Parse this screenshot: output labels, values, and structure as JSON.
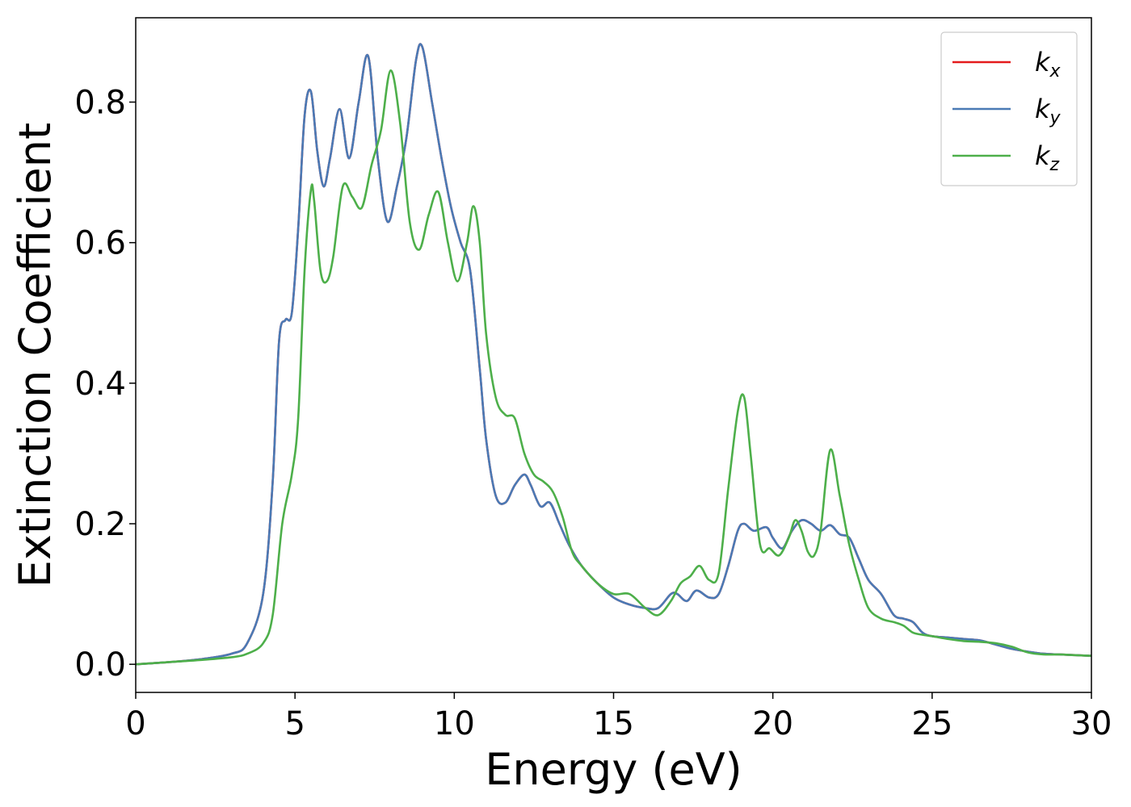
{
  "chart_data": {
    "type": "line",
    "title": "",
    "xlabel": "Energy (eV)",
    "ylabel": "Extinction Coefficient",
    "xlim": [
      0,
      30
    ],
    "ylim": [
      -0.04,
      0.92
    ],
    "xticks": [
      0,
      5,
      10,
      15,
      20,
      25,
      30
    ],
    "yticks": [
      0.0,
      0.2,
      0.4,
      0.6,
      0.8
    ],
    "xtick_labels": [
      "0",
      "5",
      "10",
      "15",
      "20",
      "25",
      "30"
    ],
    "ytick_labels": [
      "0.0",
      "0.2",
      "0.4",
      "0.6",
      "0.8"
    ],
    "grid": false,
    "legend_position": "top-right",
    "series": [
      {
        "name": "k_x",
        "label_base": "k",
        "label_sub": "x",
        "color": "#e41a1c",
        "x": [
          0,
          1,
          2,
          3,
          3.5,
          4,
          4.3,
          4.5,
          4.7,
          4.9,
          5.1,
          5.3,
          5.5,
          5.7,
          5.9,
          6.1,
          6.4,
          6.7,
          7.0,
          7.3,
          7.6,
          7.9,
          8.2,
          8.5,
          8.8,
          9.0,
          9.3,
          9.6,
          9.9,
          10.2,
          10.5,
          10.8,
          11.0,
          11.3,
          11.6,
          11.9,
          12.2,
          12.4,
          12.7,
          13.0,
          13.3,
          13.6,
          14.0,
          14.5,
          15.0,
          15.5,
          16.0,
          16.4,
          16.8,
          17.0,
          17.3,
          17.6,
          18.0,
          18.3,
          18.6,
          18.9,
          19.1,
          19.4,
          19.8,
          20.0,
          20.3,
          20.6,
          20.9,
          21.2,
          21.5,
          21.8,
          22.1,
          22.4,
          22.7,
          23.0,
          23.4,
          23.8,
          24.1,
          24.4,
          24.7,
          25.0,
          25.5,
          26.0,
          26.5,
          27.0,
          27.5,
          28.0,
          28.5,
          29.0,
          29.5,
          30
        ],
        "y": [
          0.0,
          0.003,
          0.007,
          0.015,
          0.03,
          0.1,
          0.26,
          0.46,
          0.49,
          0.5,
          0.62,
          0.78,
          0.815,
          0.73,
          0.68,
          0.72,
          0.79,
          0.72,
          0.8,
          0.865,
          0.72,
          0.63,
          0.68,
          0.75,
          0.86,
          0.878,
          0.8,
          0.72,
          0.65,
          0.6,
          0.56,
          0.42,
          0.32,
          0.24,
          0.23,
          0.255,
          0.27,
          0.255,
          0.225,
          0.23,
          0.2,
          0.17,
          0.14,
          0.115,
          0.095,
          0.085,
          0.08,
          0.08,
          0.1,
          0.1,
          0.09,
          0.105,
          0.095,
          0.1,
          0.14,
          0.19,
          0.2,
          0.19,
          0.195,
          0.18,
          0.165,
          0.19,
          0.205,
          0.2,
          0.19,
          0.198,
          0.185,
          0.18,
          0.15,
          0.12,
          0.1,
          0.07,
          0.065,
          0.06,
          0.045,
          0.04,
          0.038,
          0.036,
          0.034,
          0.028,
          0.022,
          0.018,
          0.015,
          0.014,
          0.013,
          0.012
        ]
      },
      {
        "name": "k_y",
        "label_base": "k",
        "label_sub": "y",
        "color": "#4a7ab5",
        "x": [
          0,
          1,
          2,
          3,
          3.5,
          4,
          4.3,
          4.5,
          4.7,
          4.9,
          5.1,
          5.3,
          5.5,
          5.7,
          5.9,
          6.1,
          6.4,
          6.7,
          7.0,
          7.3,
          7.6,
          7.9,
          8.2,
          8.5,
          8.8,
          9.0,
          9.3,
          9.6,
          9.9,
          10.2,
          10.5,
          10.8,
          11.0,
          11.3,
          11.6,
          11.9,
          12.2,
          12.4,
          12.7,
          13.0,
          13.3,
          13.6,
          14.0,
          14.5,
          15.0,
          15.5,
          16.0,
          16.4,
          16.8,
          17.0,
          17.3,
          17.6,
          18.0,
          18.3,
          18.6,
          18.9,
          19.1,
          19.4,
          19.8,
          20.0,
          20.3,
          20.6,
          20.9,
          21.2,
          21.5,
          21.8,
          22.1,
          22.4,
          22.7,
          23.0,
          23.4,
          23.8,
          24.1,
          24.4,
          24.7,
          25.0,
          25.5,
          26.0,
          26.5,
          27.0,
          27.5,
          28.0,
          28.5,
          29.0,
          29.5,
          30
        ],
        "y": [
          0.0,
          0.003,
          0.007,
          0.015,
          0.03,
          0.1,
          0.26,
          0.46,
          0.49,
          0.5,
          0.62,
          0.78,
          0.815,
          0.73,
          0.68,
          0.72,
          0.79,
          0.72,
          0.8,
          0.865,
          0.72,
          0.63,
          0.68,
          0.75,
          0.86,
          0.878,
          0.8,
          0.72,
          0.65,
          0.6,
          0.56,
          0.42,
          0.32,
          0.24,
          0.23,
          0.255,
          0.27,
          0.255,
          0.225,
          0.23,
          0.2,
          0.17,
          0.14,
          0.115,
          0.095,
          0.085,
          0.08,
          0.08,
          0.1,
          0.1,
          0.09,
          0.105,
          0.095,
          0.1,
          0.14,
          0.19,
          0.2,
          0.19,
          0.195,
          0.18,
          0.165,
          0.19,
          0.205,
          0.2,
          0.19,
          0.198,
          0.185,
          0.18,
          0.15,
          0.12,
          0.1,
          0.07,
          0.065,
          0.06,
          0.045,
          0.04,
          0.038,
          0.036,
          0.034,
          0.028,
          0.022,
          0.018,
          0.015,
          0.014,
          0.013,
          0.012
        ]
      },
      {
        "name": "k_z",
        "label_base": "k",
        "label_sub": "z",
        "color": "#4daf4a",
        "x": [
          0,
          1,
          2,
          3,
          3.5,
          4,
          4.3,
          4.6,
          4.9,
          5.1,
          5.3,
          5.5,
          5.6,
          5.8,
          6.0,
          6.2,
          6.5,
          6.8,
          7.1,
          7.4,
          7.7,
          8.0,
          8.3,
          8.6,
          8.9,
          9.2,
          9.5,
          9.8,
          10.1,
          10.4,
          10.6,
          10.8,
          11.0,
          11.3,
          11.6,
          11.9,
          12.2,
          12.5,
          12.8,
          13.1,
          13.4,
          13.7,
          14.0,
          14.5,
          15.0,
          15.5,
          16.0,
          16.4,
          16.8,
          17.1,
          17.4,
          17.7,
          18.0,
          18.3,
          18.6,
          18.9,
          19.1,
          19.3,
          19.6,
          19.9,
          20.2,
          20.5,
          20.7,
          20.9,
          21.1,
          21.3,
          21.5,
          21.8,
          22.1,
          22.4,
          22.7,
          23.0,
          23.4,
          23.8,
          24.1,
          24.4,
          24.7,
          25.0,
          25.5,
          26.0,
          26.5,
          27.0,
          27.5,
          28.0,
          28.5,
          29.0,
          29.5,
          30
        ],
        "y": [
          0.0,
          0.003,
          0.006,
          0.01,
          0.015,
          0.03,
          0.07,
          0.2,
          0.27,
          0.35,
          0.56,
          0.675,
          0.66,
          0.56,
          0.545,
          0.58,
          0.68,
          0.665,
          0.65,
          0.71,
          0.76,
          0.845,
          0.77,
          0.63,
          0.59,
          0.64,
          0.672,
          0.6,
          0.545,
          0.6,
          0.652,
          0.6,
          0.47,
          0.38,
          0.355,
          0.35,
          0.3,
          0.27,
          0.26,
          0.245,
          0.21,
          0.16,
          0.14,
          0.115,
          0.1,
          0.1,
          0.08,
          0.07,
          0.09,
          0.115,
          0.125,
          0.14,
          0.12,
          0.13,
          0.25,
          0.36,
          0.38,
          0.3,
          0.17,
          0.165,
          0.155,
          0.18,
          0.205,
          0.19,
          0.16,
          0.155,
          0.19,
          0.305,
          0.24,
          0.17,
          0.12,
          0.08,
          0.065,
          0.06,
          0.055,
          0.045,
          0.042,
          0.04,
          0.036,
          0.033,
          0.032,
          0.03,
          0.025,
          0.017,
          0.014,
          0.014,
          0.013,
          0.012
        ]
      }
    ]
  }
}
